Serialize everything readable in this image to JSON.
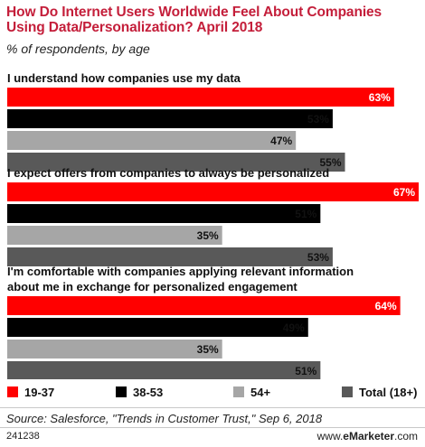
{
  "header": {
    "title": "How Do Internet Users Worldwide Feel About Companies Using Data/Personalization? April 2018",
    "subtitle": "% of respondents, by age"
  },
  "chart_data": {
    "type": "bar",
    "orientation": "horizontal",
    "xlim": [
      0,
      70
    ],
    "unit": "%",
    "categories": [
      "I understand how companies use my data",
      "I expect offers from companies to always be personalized",
      "I'm comfortable with companies applying relevant information about me in exchange for personalized engagement"
    ],
    "series": [
      {
        "name": "19-37",
        "color": "#ff0000",
        "values": [
          63,
          67,
          64
        ]
      },
      {
        "name": "38-53",
        "color": "#000000",
        "values": [
          53,
          51,
          49
        ]
      },
      {
        "name": "54+",
        "color": "#a6a6a6",
        "values": [
          47,
          35,
          35
        ]
      },
      {
        "name": "Total (18+)",
        "color": "#595959",
        "values": [
          55,
          53,
          51
        ]
      }
    ],
    "category_lines": [
      [
        "I understand how companies use my data"
      ],
      [
        "I expect offers from companies to always be personalized"
      ],
      [
        "I'm comfortable with companies applying relevant information",
        "about me in exchange for personalized engagement"
      ]
    ]
  },
  "footer": {
    "source": "Source: Salesforce, \"Trends in Customer Trust,\" Sep 6, 2018",
    "chart_id": "241238",
    "brand_prefix": "www.",
    "brand_name": "eMarketer",
    "brand_suffix": ".com"
  }
}
